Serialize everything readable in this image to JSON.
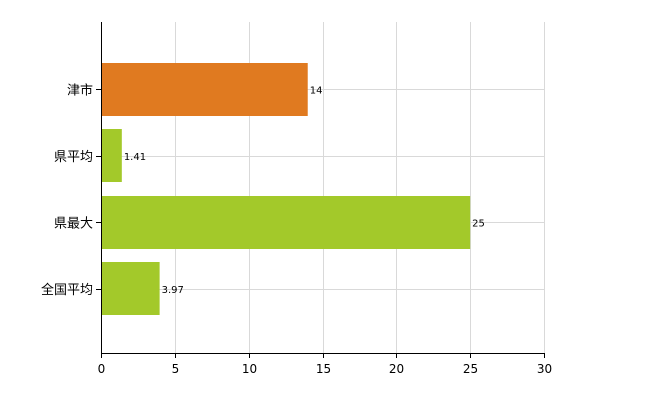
{
  "chart_data": {
    "type": "bar",
    "orientation": "horizontal",
    "title": "",
    "xlabel": "",
    "ylabel": "",
    "categories": [
      "津市",
      "県平均",
      "県最大",
      "全国平均"
    ],
    "values": [
      14,
      1.41,
      25,
      3.97
    ],
    "value_labels": [
      "14",
      "1.41",
      "25",
      "3.97"
    ],
    "bar_colors": [
      "#e07a20",
      "#a3c92a",
      "#a3c92a",
      "#a3c92a"
    ],
    "xlim": [
      0,
      30
    ],
    "xticks": [
      0,
      5,
      10,
      15,
      20,
      25,
      30
    ],
    "xtick_labels": [
      "0",
      "5",
      "10",
      "15",
      "20",
      "25",
      "30"
    ],
    "grid": true,
    "grid_color": "#d9d9d9",
    "axis_color": "#000000",
    "legend": "none"
  }
}
